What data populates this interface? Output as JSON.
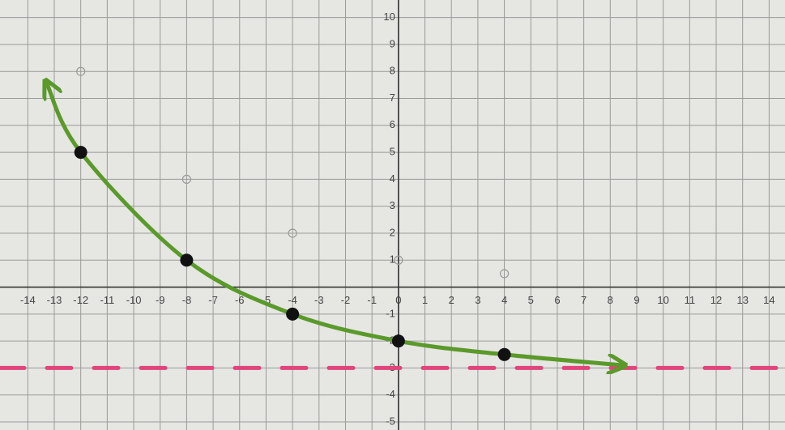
{
  "chart_data": {
    "type": "line",
    "xlim": [
      -15.05,
      14.6
    ],
    "ylim": [
      -5.3,
      10.65
    ],
    "xticks": [
      -14,
      -13,
      -12,
      -11,
      -10,
      -9,
      -8,
      -7,
      -6,
      -5,
      -4,
      -3,
      -2,
      -1,
      0,
      1,
      2,
      3,
      4,
      5,
      6,
      7,
      8,
      9,
      10,
      11,
      12,
      13,
      14
    ],
    "yticks": [
      -5,
      -4,
      -3,
      -2,
      -1,
      1,
      2,
      3,
      4,
      5,
      6,
      7,
      8,
      9,
      10
    ],
    "grid": true,
    "curve": {
      "color": "#5a9a2a",
      "x": [
        -13.3,
        -12,
        -8,
        -4,
        0,
        4,
        8.5
      ],
      "values": [
        7.6,
        5,
        1,
        -1,
        -2,
        -2.5,
        -2.9
      ]
    },
    "points": {
      "color": "#111111",
      "x": [
        -12,
        -8,
        -4,
        0,
        4
      ],
      "values": [
        5,
        1,
        -1,
        -2,
        -2.5
      ]
    },
    "faint_points": {
      "color": "#9a9a98",
      "x": [
        -12,
        -8,
        -4,
        0,
        4
      ],
      "values": [
        8,
        4,
        2,
        1,
        0.5
      ]
    },
    "asymptote": {
      "color": "#e0457b",
      "value": -3
    }
  }
}
